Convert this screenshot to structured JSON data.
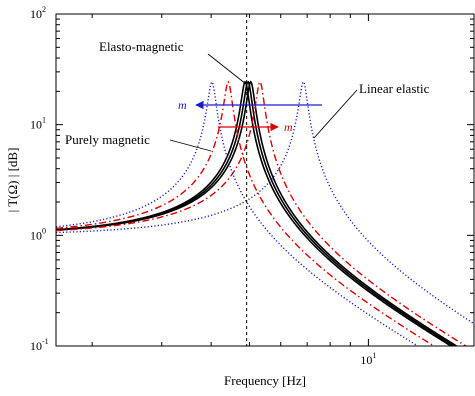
{
  "chart_data": {
    "type": "line",
    "xlabel": "Frequency  [Hz]",
    "ylabel": "| T(Ω) |  [dB]",
    "x_scale": "log",
    "y_scale": "log",
    "xlim": [
      1.62,
      18.5
    ],
    "ylim": [
      0.1,
      100
    ],
    "y_ticks": [
      {
        "value": 0.1,
        "label": "10",
        "exp": "-1"
      },
      {
        "value": 1,
        "label": "10",
        "exp": "0"
      },
      {
        "value": 10,
        "label": "10",
        "exp": "1"
      },
      {
        "value": 100,
        "label": "10",
        "exp": "2"
      }
    ],
    "x_ticks": [
      {
        "value": 10,
        "label": "10",
        "exp": "1"
      }
    ],
    "reference_line": {
      "x": 4.92,
      "style": "dashed"
    },
    "grid": false,
    "series_styles": {
      "black": {
        "color": "#000000",
        "dash": "solid"
      },
      "red": {
        "color": "#dd0000",
        "dash": "dashdot"
      },
      "blue": {
        "color": "#1a1acc",
        "dash": "dotted"
      }
    },
    "series": [
      {
        "group": "black",
        "f0": 4.88,
        "zeta": 0.0205
      },
      {
        "group": "black",
        "f0": 4.96,
        "zeta": 0.0205
      },
      {
        "group": "black",
        "f0": 5.04,
        "zeta": 0.0205
      },
      {
        "group": "red",
        "f0": 4.42,
        "zeta": 0.0205
      },
      {
        "group": "red",
        "f0": 5.32,
        "zeta": 0.0205
      },
      {
        "group": "blue",
        "f0": 4.02,
        "zeta": 0.0205
      },
      {
        "group": "blue",
        "f0": 6.85,
        "zeta": 0.0205
      }
    ],
    "annotations": {
      "elasto": "Elasto-magnetic",
      "linear": "Linear elastic",
      "purely": "Purely magnetic",
      "m_blue": "m",
      "m_red": "m"
    },
    "colors": {
      "blue_arrow": "#1a1acc",
      "red_arrow": "#dd0000"
    }
  }
}
